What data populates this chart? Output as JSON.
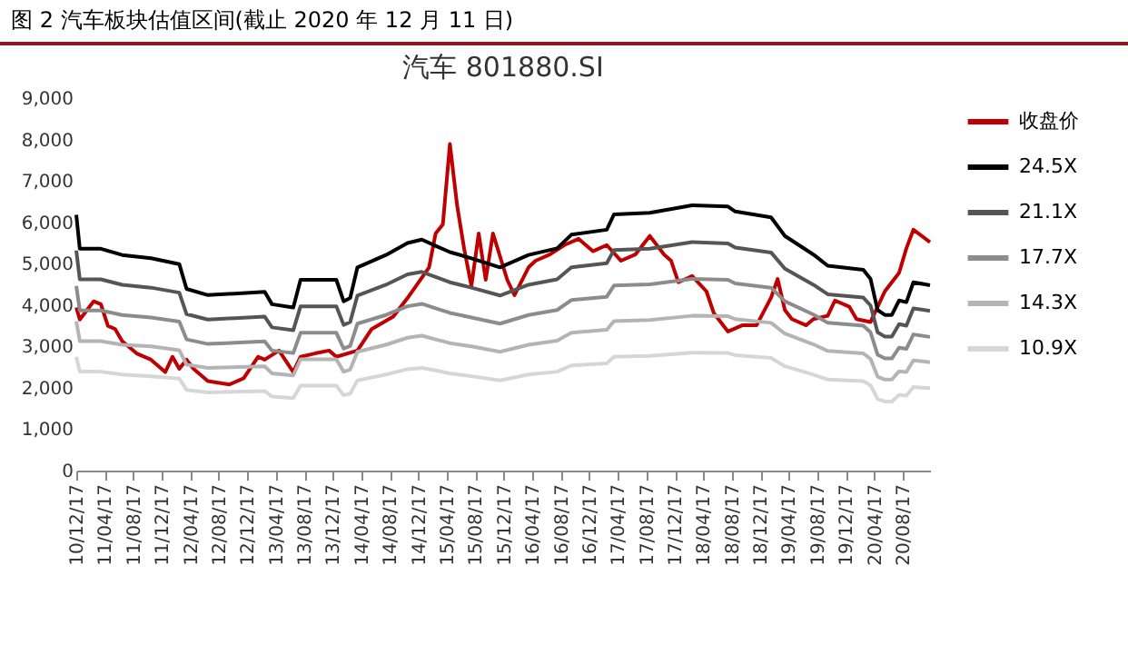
{
  "chart_data": {
    "type": "line",
    "title": "汽车 801880.SI",
    "annotations": [
      "图 2 汽车板块估值区间(截止 2020 年 12 月 11 日)"
    ],
    "x": [
      "2010-12-17",
      "2011-01",
      "2011-04",
      "2011-07",
      "2011-11",
      "2012-03",
      "2012-04",
      "2012-07",
      "2013-03",
      "2013-04",
      "2013-07",
      "2013-08",
      "2014-01",
      "2014-02",
      "2014-03",
      "2014-04",
      "2014-08",
      "2014-11",
      "2015-01",
      "2015-03",
      "2015-05",
      "2015-08",
      "2015-12",
      "2016-04",
      "2016-08",
      "2016-10",
      "2017-03",
      "2017-04",
      "2017-09",
      "2018-03",
      "2018-08",
      "2018-09",
      "2019-02",
      "2019-04",
      "2019-08",
      "2019-10",
      "2020-03",
      "2020-04",
      "2020-05",
      "2020-06",
      "2020-07",
      "2020-08",
      "2020-09",
      "2020-10",
      "2020-12-11"
    ],
    "series": [
      {
        "name": "收盘价",
        "color": "#c00000",
        "x": [
          "2010-12-17",
          "2011-01",
          "2011-03",
          "2011-04",
          "2011-05",
          "2011-06",
          "2011-07",
          "2011-09",
          "2011-11",
          "2012-01",
          "2012-02",
          "2012-03",
          "2012-04",
          "2012-05",
          "2012-07",
          "2012-10",
          "2012-12",
          "2013-02",
          "2013-03",
          "2013-05",
          "2013-07",
          "2013-08",
          "2013-10",
          "2013-12",
          "2014-01",
          "2014-04",
          "2014-06",
          "2014-09",
          "2014-11",
          "2015-02",
          "2015-03",
          "2015-04",
          "2015-05",
          "2015-06",
          "2015-07",
          "2015-08",
          "2015-09",
          "2015-10",
          "2015-11",
          "2016-01",
          "2016-02",
          "2016-04",
          "2016-05",
          "2016-07",
          "2016-09",
          "2016-11",
          "2017-01",
          "2017-03",
          "2017-05",
          "2017-07",
          "2017-09",
          "2017-11",
          "2017-12",
          "2018-01",
          "2018-03",
          "2018-05",
          "2018-06",
          "2018-08",
          "2018-10",
          "2018-12",
          "2019-02",
          "2019-03",
          "2019-04",
          "2019-05",
          "2019-07",
          "2019-08",
          "2019-10",
          "2019-11",
          "2020-01",
          "2020-02",
          "2020-04",
          "2020-06",
          "2020-08",
          "2020-09",
          "2020-10",
          "2020-12-11"
        ],
        "values": [
          3940,
          3650,
          4090,
          4020,
          3500,
          3420,
          3130,
          2830,
          2680,
          2380,
          2750,
          2460,
          2680,
          2460,
          2160,
          2080,
          2230,
          2750,
          2680,
          2900,
          2380,
          2750,
          2830,
          2900,
          2750,
          2900,
          3420,
          3720,
          4170,
          4910,
          5730,
          5950,
          7890,
          6400,
          5360,
          4460,
          5730,
          4610,
          5730,
          4610,
          4240,
          4910,
          5070,
          5220,
          5450,
          5600,
          5300,
          5450,
          5070,
          5220,
          5670,
          5220,
          5070,
          4550,
          4700,
          4330,
          3810,
          3360,
          3510,
          3510,
          4180,
          4630,
          3880,
          3660,
          3510,
          3660,
          3740,
          4110,
          3960,
          3660,
          3590,
          4330,
          4780,
          5370,
          5820,
          5520
        ]
      },
      {
        "name": "24.5X",
        "color": "#000000",
        "values": [
          6180,
          5360,
          5360,
          5210,
          5130,
          4990,
          4390,
          4240,
          4320,
          4020,
          3940,
          4610,
          4610,
          4090,
          4170,
          4910,
          5210,
          5500,
          5580,
          5430,
          5280,
          5130,
          4910,
          5210,
          5370,
          5700,
          5820,
          6190,
          6230,
          6410,
          6380,
          6260,
          6120,
          5670,
          5220,
          4950,
          4850,
          4630,
          3880,
          3760,
          3760,
          4110,
          4070,
          4550,
          4480
        ]
      },
      {
        "name": "21.1X",
        "color": "#555555",
        "values": [
          5320,
          4620,
          4620,
          4490,
          4420,
          4300,
          3780,
          3650,
          3720,
          3460,
          3390,
          3970,
          3970,
          3520,
          3590,
          4230,
          4490,
          4740,
          4800,
          4680,
          4550,
          4420,
          4230,
          4490,
          4620,
          4910,
          5010,
          5330,
          5360,
          5520,
          5490,
          5390,
          5270,
          4880,
          4490,
          4260,
          4180,
          3990,
          3340,
          3240,
          3240,
          3540,
          3500,
          3920,
          3860
        ]
      },
      {
        "name": "17.7X",
        "color": "#8c8c8c",
        "values": [
          4460,
          3870,
          3870,
          3760,
          3700,
          3600,
          3170,
          3060,
          3120,
          2900,
          2840,
          3330,
          3330,
          2950,
          3010,
          3550,
          3760,
          3970,
          4030,
          3920,
          3810,
          3700,
          3550,
          3760,
          3880,
          4120,
          4200,
          4470,
          4500,
          4630,
          4610,
          4520,
          4420,
          4090,
          3770,
          3570,
          3500,
          3340,
          2800,
          2710,
          2710,
          2970,
          2940,
          3290,
          3230
        ]
      },
      {
        "name": "14.3X",
        "color": "#b4b4b4",
        "values": [
          3610,
          3130,
          3130,
          3040,
          3000,
          2910,
          2560,
          2480,
          2520,
          2350,
          2300,
          2690,
          2690,
          2390,
          2440,
          2870,
          3040,
          3210,
          3260,
          3170,
          3080,
          3000,
          2870,
          3040,
          3140,
          3330,
          3400,
          3610,
          3640,
          3740,
          3730,
          3660,
          3570,
          3310,
          3050,
          2890,
          2830,
          2700,
          2270,
          2200,
          2200,
          2400,
          2380,
          2660,
          2620
        ]
      },
      {
        "name": "10.9X",
        "color": "#d6d6d6",
        "values": [
          2750,
          2390,
          2390,
          2320,
          2280,
          2220,
          1950,
          1890,
          1920,
          1790,
          1750,
          2050,
          2050,
          1820,
          1860,
          2180,
          2320,
          2450,
          2480,
          2420,
          2350,
          2280,
          2180,
          2320,
          2390,
          2540,
          2590,
          2750,
          2770,
          2850,
          2840,
          2790,
          2720,
          2520,
          2320,
          2200,
          2160,
          2060,
          1730,
          1670,
          1670,
          1830,
          1810,
          2020,
          1990
        ]
      }
    ],
    "xlim": [
      "2010-12-17",
      "2020-12-11"
    ],
    "xticks": [
      {
        "value": "2010-12-17",
        "label": "10/12/17"
      },
      {
        "value": "2011-04-17",
        "label": "11/04/17"
      },
      {
        "value": "2011-08-17",
        "label": "11/08/17"
      },
      {
        "value": "2011-12-17",
        "label": "11/12/17"
      },
      {
        "value": "2012-04-17",
        "label": "12/04/17"
      },
      {
        "value": "2012-08-17",
        "label": "12/08/17"
      },
      {
        "value": "2012-12-17",
        "label": "12/12/17"
      },
      {
        "value": "2013-04-17",
        "label": "13/04/17"
      },
      {
        "value": "2013-08-17",
        "label": "13/08/17"
      },
      {
        "value": "2013-12-17",
        "label": "13/12/17"
      },
      {
        "value": "2014-04-17",
        "label": "14/04/17"
      },
      {
        "value": "2014-08-17",
        "label": "14/08/17"
      },
      {
        "value": "2014-12-17",
        "label": "14/12/17"
      },
      {
        "value": "2015-04-17",
        "label": "15/04/17"
      },
      {
        "value": "2015-08-17",
        "label": "15/08/17"
      },
      {
        "value": "2015-12-17",
        "label": "15/12/17"
      },
      {
        "value": "2016-04-17",
        "label": "16/04/17"
      },
      {
        "value": "2016-08-17",
        "label": "16/08/17"
      },
      {
        "value": "2016-12-17",
        "label": "16/12/17"
      },
      {
        "value": "2017-04-17",
        "label": "17/04/17"
      },
      {
        "value": "2017-08-17",
        "label": "17/08/17"
      },
      {
        "value": "2017-12-17",
        "label": "17/12/17"
      },
      {
        "value": "2018-04-17",
        "label": "18/04/17"
      },
      {
        "value": "2018-08-17",
        "label": "18/08/17"
      },
      {
        "value": "2018-12-17",
        "label": "18/12/17"
      },
      {
        "value": "2019-04-17",
        "label": "19/04/17"
      },
      {
        "value": "2019-08-17",
        "label": "19/08/17"
      },
      {
        "value": "2019-12-17",
        "label": "19/12/17"
      },
      {
        "value": "2020-04-17",
        "label": "20/04/17"
      },
      {
        "value": "2020-08-17",
        "label": "20/08/17"
      }
    ],
    "ylim": [
      0,
      9000
    ],
    "yticks": [
      {
        "value": 0,
        "label": "0"
      },
      {
        "value": 1000,
        "label": "1,000"
      },
      {
        "value": 2000,
        "label": "2,000"
      },
      {
        "value": 3000,
        "label": "3,000"
      },
      {
        "value": 4000,
        "label": "4,000"
      },
      {
        "value": 5000,
        "label": "5,000"
      },
      {
        "value": 6000,
        "label": "6,000"
      },
      {
        "value": 7000,
        "label": "7,000"
      },
      {
        "value": 8000,
        "label": "8,000"
      },
      {
        "value": 9000,
        "label": "9,000"
      }
    ],
    "legend": "right"
  }
}
